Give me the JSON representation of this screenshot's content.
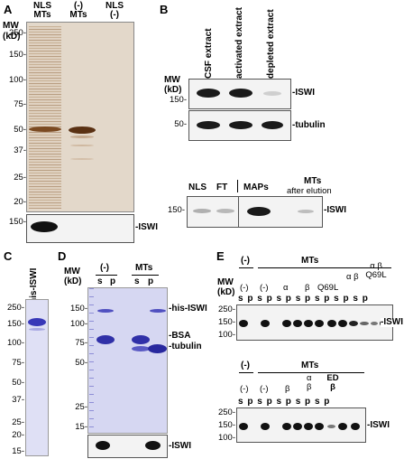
{
  "panelA": {
    "letter": "A",
    "mw_label": "MW",
    "kd_label": "(kD)",
    "col_labels": [
      [
        "NLS",
        "MTs"
      ],
      [
        "(-)",
        "MTs"
      ],
      [
        "NLS",
        "(-)"
      ]
    ],
    "markers": [
      "250-",
      "150-",
      "100-",
      "75-",
      "50-",
      "37-",
      "25-",
      "20-"
    ],
    "blot_marker": "150-",
    "blot_label": "-ISWI"
  },
  "panelB": {
    "letter": "B",
    "lanes": [
      "CSF extract",
      "activated extract",
      "depleted extract"
    ],
    "mw_label": "MW",
    "kd_label": "(kD)",
    "markers": [
      "150-",
      "50-"
    ],
    "band_labels": [
      "-ISWI",
      "-tubulin"
    ],
    "lower_lanes": [
      "NLS",
      "FT",
      "MAPs",
      "MTs",
      "after elution"
    ],
    "lower_marker": "150-",
    "lower_label": "-ISWI"
  },
  "panelC": {
    "letter": "C",
    "lane": "his-ISWI",
    "markers": [
      "250-",
      "150-",
      "100-",
      "75-",
      "50-",
      "37-",
      "25-",
      "20-",
      "15-"
    ]
  },
  "panelD": {
    "letter": "D",
    "mw_label": "MW",
    "kd_label": "(kD)",
    "groups": [
      "(-)",
      "MTs"
    ],
    "sp": [
      "s",
      "p",
      "s",
      "p"
    ],
    "markers": [
      "150-",
      "100-",
      "75-",
      "50-",
      "25-",
      "15-"
    ],
    "labels": [
      "-his-ISWI",
      "-BSA",
      "-tubulin"
    ],
    "blot_label": "-ISWI"
  },
  "panelE": {
    "letter": "E",
    "top_groups": [
      "(-)",
      "MTs"
    ],
    "mw_label": "MW",
    "kd_label": "(kD)",
    "top_conditions": [
      "(-)",
      "(-)",
      "α",
      "β",
      "Q69L",
      "α β",
      "α β Q69L"
    ],
    "sp": "s p",
    "top_markers": [
      "250-",
      "150-",
      "100-"
    ],
    "top_label": "-ISWI",
    "bottom_groups": [
      "(-)",
      "MTs"
    ],
    "bottom_conditions": [
      "(-)",
      "(-)",
      "β",
      "α β",
      "ED β"
    ],
    "bottom_markers": [
      "250-",
      "150-",
      "100-"
    ],
    "bottom_label": "-ISWI"
  }
}
